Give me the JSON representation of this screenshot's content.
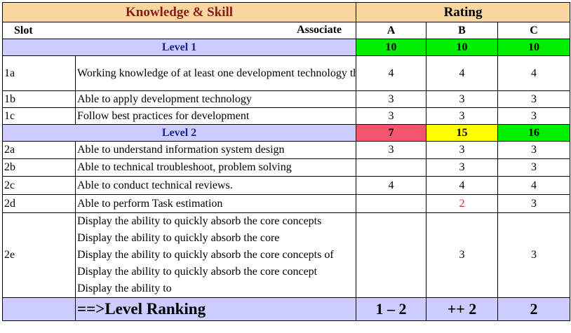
{
  "header": {
    "knowledge_skill": "Knowledge & Skill",
    "rating": "Rating"
  },
  "subheader": {
    "slot": "Slot",
    "associate": "Associate",
    "cols": [
      "A",
      "B",
      "C"
    ]
  },
  "level1": {
    "label": "Level 1",
    "totals": [
      "10",
      "10",
      "10"
    ],
    "total_colors": [
      "#00ee00",
      "#00ee00",
      "#00ee00"
    ]
  },
  "level1_rows": [
    {
      "slot": "1a",
      "desc": "Working knowledge of at least one development technology that matches the company’s business focus",
      "a": "4",
      "b": "4",
      "c": "4"
    },
    {
      "slot": "1b",
      "desc": "Able to apply development technology",
      "a": "3",
      "b": "3",
      "c": "3"
    },
    {
      "slot": "1c",
      "desc": "Follow best practices for development",
      "a": "3",
      "b": "3",
      "c": "3"
    }
  ],
  "level2": {
    "label": "Level 2",
    "totals": [
      "7",
      "15",
      "16"
    ],
    "total_colors": [
      "#f4566e",
      "#ffff00",
      "#00ee00"
    ]
  },
  "level2_rows": [
    {
      "slot": "2a",
      "desc": "Able to understand information system design",
      "a": "3",
      "b": "3",
      "c": "3"
    },
    {
      "slot": "2b",
      "desc": "Able to technical troubleshoot, problem solving",
      "a": "",
      "b": "3",
      "c": "3"
    },
    {
      "slot": "2c",
      "desc": "Able to conduct technical reviews.",
      "a": "4",
      "b": "4",
      "c": "4"
    },
    {
      "slot": "2d",
      "desc": "Able to perform Task estimation",
      "a": "",
      "b": "2",
      "c": "3"
    }
  ],
  "row_2e": {
    "slot": "2e",
    "lines": [
      "Display the ability to quickly absorb the core concepts",
      "Display the ability to quickly absorb the core",
      "Display the ability to quickly absorb the core concepts of",
      "Display the ability to quickly absorb the core concept",
      "Display the ability to"
    ],
    "a": "",
    "b": "3",
    "c": "3"
  },
  "ranking": {
    "label": "==>Level Ranking",
    "values": [
      "1 – 2",
      "++ 2",
      "2"
    ]
  },
  "colors": {
    "header_bg": "#fad7a0",
    "header_title": "#8b1a1a",
    "level_bg": "#ccccff",
    "level_text": "#1f1f8f",
    "highlight_red_text": "#cc3333"
  }
}
